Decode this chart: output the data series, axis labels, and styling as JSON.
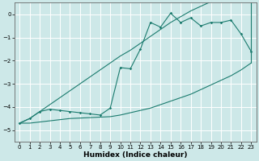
{
  "xlabel": "Humidex (Indice chaleur)",
  "xlim": [
    -0.5,
    23.5
  ],
  "ylim": [
    -5.5,
    0.5
  ],
  "yticks": [
    0,
    -1,
    -2,
    -3,
    -4,
    -5
  ],
  "xticks": [
    0,
    1,
    2,
    3,
    4,
    5,
    6,
    7,
    8,
    9,
    10,
    11,
    12,
    13,
    14,
    15,
    16,
    17,
    18,
    19,
    20,
    21,
    22,
    23
  ],
  "bg_color": "#cde8e8",
  "line_color": "#1b7b6e",
  "grid_color": "#ffffff",
  "data_x": [
    0,
    1,
    2,
    3,
    4,
    5,
    6,
    7,
    8,
    9,
    10,
    11,
    12,
    13,
    14,
    15,
    16,
    17,
    18,
    19,
    20,
    21,
    22,
    23
  ],
  "main_y": [
    -4.7,
    -4.5,
    -4.2,
    -4.1,
    -4.15,
    -4.2,
    -4.25,
    -4.3,
    -4.35,
    -4.05,
    -2.3,
    -2.35,
    -1.5,
    -0.35,
    -0.55,
    0.05,
    -0.35,
    -0.15,
    -0.5,
    -0.35,
    -0.35,
    -0.25,
    -0.85,
    -1.6
  ],
  "upper_y": [
    -4.7,
    -4.5,
    -4.2,
    -3.9,
    -3.6,
    -3.3,
    -3.0,
    -2.7,
    -2.4,
    -2.1,
    -1.8,
    -1.55,
    -1.25,
    -0.95,
    -0.65,
    -0.35,
    -0.1,
    0.15,
    0.35,
    0.55,
    0.75,
    0.9,
    1.05,
    1.2
  ],
  "lower_y": [
    -4.7,
    -4.7,
    -4.65,
    -4.6,
    -4.55,
    -4.5,
    -4.48,
    -4.46,
    -4.44,
    -4.42,
    -4.35,
    -4.25,
    -4.15,
    -4.05,
    -3.9,
    -3.75,
    -3.6,
    -3.45,
    -3.25,
    -3.05,
    -2.85,
    -2.65,
    -2.4,
    -2.1
  ]
}
